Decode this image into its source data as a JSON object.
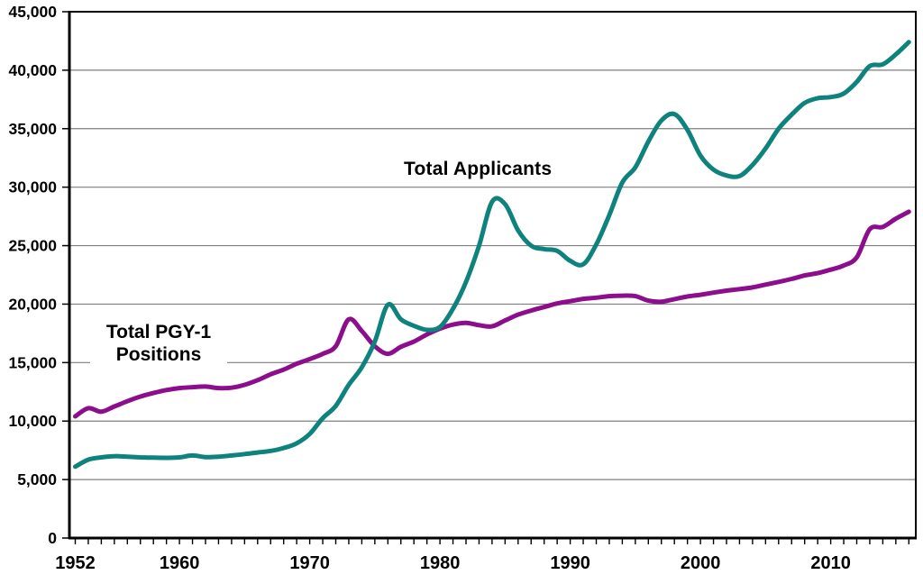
{
  "chart_data": {
    "type": "line",
    "title": "",
    "xlabel": "",
    "ylabel": "",
    "xlim": [
      1952,
      2016.5
    ],
    "ylim": [
      0,
      45000
    ],
    "grid": "horizontal-gray-lines",
    "legend_position": "in-plot text annotations",
    "x": [
      1952,
      1953,
      1954,
      1955,
      1956,
      1957,
      1958,
      1959,
      1960,
      1961,
      1962,
      1963,
      1964,
      1965,
      1966,
      1967,
      1968,
      1969,
      1970,
      1971,
      1972,
      1973,
      1974,
      1975,
      1976,
      1977,
      1978,
      1979,
      1980,
      1981,
      1982,
      1983,
      1984,
      1985,
      1986,
      1987,
      1988,
      1989,
      1990,
      1991,
      1992,
      1993,
      1994,
      1995,
      1996,
      1997,
      1998,
      1999,
      2000,
      2001,
      2002,
      2003,
      2004,
      2005,
      2006,
      2007,
      2008,
      2009,
      2010,
      2011,
      2012,
      2013,
      2014,
      2015,
      2016
    ],
    "series": [
      {
        "name": "Total Applicants",
        "color": "#0e837d",
        "values": [
          6100,
          6700,
          6900,
          7000,
          6950,
          6900,
          6870,
          6860,
          6900,
          7060,
          6920,
          6960,
          7060,
          7180,
          7310,
          7450,
          7700,
          8100,
          8900,
          10250,
          11300,
          13100,
          14600,
          16800,
          19950,
          18700,
          18150,
          17800,
          18050,
          19600,
          21900,
          25000,
          28750,
          28550,
          26300,
          25000,
          24700,
          24550,
          23700,
          23400,
          25100,
          27600,
          30400,
          31700,
          33900,
          35700,
          36250,
          34900,
          32700,
          31500,
          31000,
          30950,
          31900,
          33300,
          35000,
          36200,
          37200,
          37600,
          37700,
          38000,
          39000,
          40350,
          40500,
          41350,
          42400
        ]
      },
      {
        "name": "Total PGY-1 Positions",
        "color": "#8c0e8c",
        "values": [
          10400,
          11100,
          10800,
          11250,
          11700,
          12100,
          12400,
          12650,
          12820,
          12900,
          12950,
          12820,
          12850,
          13100,
          13500,
          14000,
          14400,
          14900,
          15300,
          15750,
          16400,
          18700,
          17700,
          16400,
          15750,
          16350,
          16800,
          17400,
          17900,
          18250,
          18400,
          18200,
          18100,
          18600,
          19100,
          19450,
          19750,
          20060,
          20250,
          20450,
          20550,
          20680,
          20720,
          20680,
          20300,
          20200,
          20430,
          20650,
          20800,
          20980,
          21150,
          21280,
          21430,
          21670,
          21900,
          22150,
          22450,
          22650,
          22950,
          23300,
          24000,
          26400,
          26600,
          27300,
          27900
        ]
      }
    ],
    "y_ticks": [
      {
        "value": 0,
        "label": "0"
      },
      {
        "value": 5000,
        "label": "5,000"
      },
      {
        "value": 10000,
        "label": "10,000"
      },
      {
        "value": 15000,
        "label": "15,000"
      },
      {
        "value": 20000,
        "label": "20,000"
      },
      {
        "value": 25000,
        "label": "25,000"
      },
      {
        "value": 30000,
        "label": "30,000"
      },
      {
        "value": 35000,
        "label": "35,000"
      },
      {
        "value": 40000,
        "label": "40,000"
      },
      {
        "value": 45000,
        "label": "45,000"
      }
    ],
    "x_tick_labels": [
      {
        "year": 1952,
        "label": "1952"
      },
      {
        "year": 1960,
        "label": "1960"
      },
      {
        "year": 1970,
        "label": "1970"
      },
      {
        "year": 1980,
        "label": "1980"
      },
      {
        "year": 1990,
        "label": "1990"
      },
      {
        "year": 2000,
        "label": "2000"
      },
      {
        "year": 2010,
        "label": "2010"
      }
    ],
    "annotations": {
      "applicants": {
        "text": "Total Applicants"
      },
      "positions": {
        "line1": "Total PGY-1",
        "line2": "Positions"
      }
    }
  },
  "styles": {
    "background": "#ffffff",
    "grid_color": "#7f7f7f",
    "axis_color": "#000000",
    "tick_label_color": "#000000",
    "applicants_color": "#0e837d",
    "positions_color": "#8c0e8c"
  }
}
